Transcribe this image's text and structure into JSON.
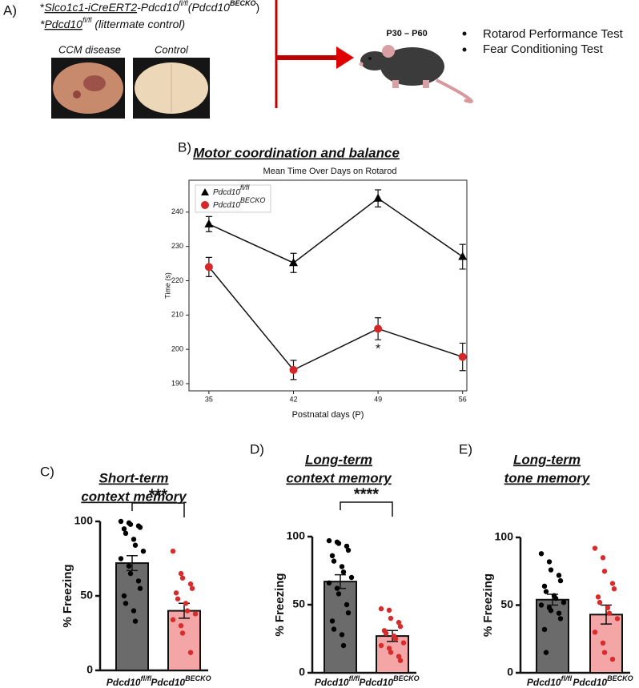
{
  "panel_a": {
    "label": "A)",
    "line1": {
      "prefix": "*",
      "underlined": "Slco1c1-iCreERT2",
      "gene": "-Pdcd10",
      "gene_sup": "fl/fl",
      "paren_open": "(Pdcd10",
      "paren_sup": "BECKO",
      "paren_close": ")"
    },
    "line2": {
      "prefix": "*",
      "gene": "Pdcd10",
      "gene_sup": "fl/fl",
      "note": " (littermate control)"
    },
    "images": [
      "CCM disease",
      "Control"
    ],
    "timeline": "P30 – P60",
    "tests": [
      "Rotarod Performance Test",
      "Fear Conditioning Test"
    ]
  },
  "chart_data": [
    {
      "type": "line",
      "panel_label": "B)",
      "heading": "Motor coordination and balance",
      "title": "Mean Time Over Days on Rotarod",
      "xlabel": "Postnatal days (P)",
      "ylabel": "Time (s)",
      "x": [
        35,
        42,
        49,
        56
      ],
      "xlim": [
        33.35,
        56.35
      ],
      "xticks": [
        35,
        42,
        49,
        56
      ],
      "ylim": [
        187.9,
        249.3
      ],
      "yticks": [
        190,
        200,
        210,
        220,
        230,
        240
      ],
      "legend": "upper left",
      "series": [
        {
          "name": "Pdcd10",
          "name_superscript": "fl/fl",
          "color": "#000000",
          "marker": "triangle",
          "values": [
            236.5,
            225.2,
            244,
            227
          ],
          "errors": [
            2.2,
            2.8,
            2.5,
            3.6
          ]
        },
        {
          "name": "Pdcd10",
          "name_superscript": "BECKO",
          "color": "#d62728",
          "marker": "circle",
          "values": [
            224,
            194,
            206,
            197.8
          ],
          "errors": [
            2.8,
            2.8,
            3.2,
            4
          ]
        }
      ],
      "annotations": [
        {
          "text": "*",
          "x": 49
        }
      ]
    },
    {
      "type": "bar",
      "panel_label": "C)",
      "heading": [
        "Short-term",
        "context memory"
      ],
      "ylabel": "% Freezing",
      "categories": [
        "Pdcd10",
        "Pdcd10"
      ],
      "category_superscripts": [
        "fl/fl",
        "BECKO"
      ],
      "values": [
        72,
        40
      ],
      "errors": [
        5,
        5
      ],
      "points": [
        [
          100,
          99,
          98,
          97,
          96,
          95,
          92,
          88,
          84,
          80,
          75,
          70,
          65,
          60,
          55,
          50,
          45,
          40,
          33
        ],
        [
          80,
          65,
          62,
          58,
          55,
          52,
          48,
          45,
          40,
          38,
          34,
          30,
          25,
          12
        ]
      ],
      "colors": [
        "#6b6b6b",
        "#f4a6a6"
      ],
      "point_colors": [
        "#000000",
        "#d92b2b"
      ],
      "ylim": [
        0,
        100
      ],
      "yticks": [
        0,
        50,
        100
      ],
      "significance": "***"
    },
    {
      "type": "bar",
      "panel_label": "D)",
      "heading": [
        "Long-term",
        "context memory"
      ],
      "ylabel": "% Freezing",
      "categories": [
        "Pdcd10",
        "Pdcd10"
      ],
      "category_superscripts": [
        "fl/fl",
        "BECKO"
      ],
      "values": [
        67,
        27
      ],
      "errors": [
        5,
        4
      ],
      "points": [
        [
          97,
          96,
          95,
          93,
          90,
          86,
          82,
          78,
          74,
          70,
          66,
          62,
          58,
          50,
          44,
          38,
          32,
          28,
          20
        ],
        [
          47,
          46,
          40,
          37,
          34,
          31,
          29,
          27,
          25,
          22,
          20,
          18,
          15,
          12,
          9
        ]
      ],
      "colors": [
        "#6b6b6b",
        "#f4a6a6"
      ],
      "point_colors": [
        "#000000",
        "#d92b2b"
      ],
      "ylim": [
        0,
        100
      ],
      "yticks": [
        0,
        50,
        100
      ],
      "significance": "****"
    },
    {
      "type": "bar",
      "panel_label": "E)",
      "heading": [
        "Long-term",
        "tone memory"
      ],
      "ylabel": "% Freezing",
      "categories": [
        "Pdcd10",
        "Pdcd10"
      ],
      "category_superscripts": [
        "fl/fl",
        "BECKO"
      ],
      "values": [
        54,
        43
      ],
      "errors": [
        4,
        7
      ],
      "points": [
        [
          88,
          82,
          76,
          72,
          68,
          64,
          60,
          57,
          55,
          52,
          50,
          48,
          46,
          44,
          40,
          32,
          15
        ],
        [
          92,
          85,
          75,
          66,
          62,
          56,
          52,
          48,
          44,
          40,
          30,
          22,
          15,
          10
        ]
      ],
      "colors": [
        "#6b6b6b",
        "#f4a6a6"
      ],
      "point_colors": [
        "#000000",
        "#d92b2b"
      ],
      "ylim": [
        0,
        100
      ],
      "yticks": [
        0,
        50,
        100
      ]
    }
  ]
}
